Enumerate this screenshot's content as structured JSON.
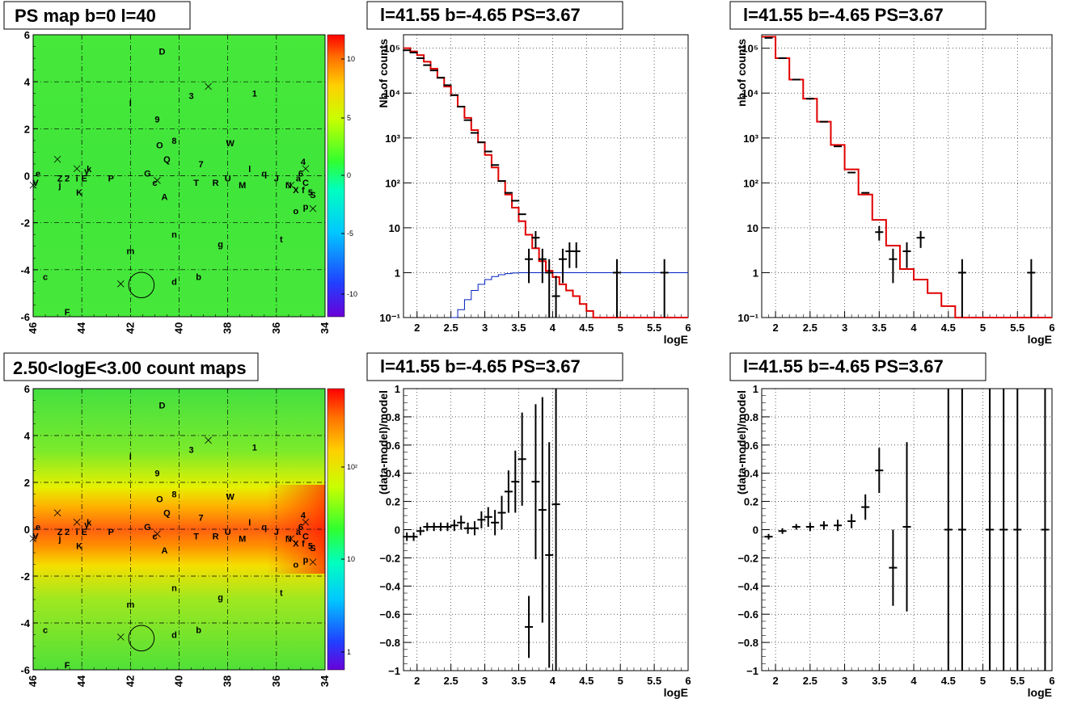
{
  "panels": {
    "map_top": {
      "title": "PS map b=0 l=40",
      "type": "heatmap",
      "x_ticks": [
        "46",
        "44",
        "42",
        "40",
        "38",
        "36",
        "34"
      ],
      "y_ticks": [
        "6",
        "4",
        "2",
        "0",
        "-2",
        "-4",
        "-6"
      ],
      "xlim": [
        46,
        34
      ],
      "ylim": [
        -6,
        6
      ],
      "colorbar_ticks": [
        "10",
        "5",
        "0",
        "-5",
        "-10"
      ],
      "colorbar_range": [
        -12,
        12
      ]
    },
    "map_bottom": {
      "title": "2.50<logE<3.00 count maps",
      "type": "heatmap",
      "x_ticks": [
        "46",
        "44",
        "42",
        "40",
        "38",
        "36",
        "34"
      ],
      "y_ticks": [
        "6",
        "4",
        "2",
        "0",
        "-2",
        "-4",
        "-6"
      ],
      "xlim": [
        46,
        34
      ],
      "ylim": [
        -6,
        6
      ],
      "colorbar_ticks": [
        "10²",
        "10",
        "1"
      ]
    },
    "sources": [
      {
        "t": "D",
        "l": 40.7,
        "b": 5.3
      },
      {
        "t": "3",
        "l": 39.5,
        "b": 3.4
      },
      {
        "t": "1",
        "l": 36.9,
        "b": 3.5
      },
      {
        "t": "I",
        "l": 42.0,
        "b": 3.1
      },
      {
        "t": "9",
        "l": 40.9,
        "b": 2.4
      },
      {
        "t": "8",
        "l": 40.2,
        "b": 1.5
      },
      {
        "t": "O",
        "l": 40.8,
        "b": 1.3
      },
      {
        "t": "W",
        "l": 37.9,
        "b": 1.4
      },
      {
        "t": "Q",
        "l": 40.5,
        "b": 0.7
      },
      {
        "t": "7",
        "l": 39.1,
        "b": 0.5
      },
      {
        "t": "4",
        "l": 34.9,
        "b": 0.6
      },
      {
        "t": "l",
        "l": 37.1,
        "b": 0.3
      },
      {
        "t": "q",
        "l": 36.5,
        "b": 0.1
      },
      {
        "t": "G",
        "l": 41.3,
        "b": 0.1
      },
      {
        "t": "e",
        "l": 45.8,
        "b": 0.1
      },
      {
        "t": "Z",
        "l": 44.9,
        "b": -0.1
      },
      {
        "t": "2",
        "l": 44.6,
        "b": -0.1
      },
      {
        "t": "i",
        "l": 44.2,
        "b": -0.1
      },
      {
        "t": "E",
        "l": 43.9,
        "b": -0.1
      },
      {
        "t": "P",
        "l": 42.8,
        "b": -0.1
      },
      {
        "t": "U",
        "l": 38.0,
        "b": -0.1
      },
      {
        "t": "J",
        "l": 36.0,
        "b": -0.1
      },
      {
        "t": "T",
        "l": 39.3,
        "b": -0.3
      },
      {
        "t": "R",
        "l": 38.5,
        "b": -0.3
      },
      {
        "t": "M",
        "l": 37.4,
        "b": -0.4
      },
      {
        "t": "V",
        "l": 45.9,
        "b": -0.3
      },
      {
        "t": "j",
        "l": 44.9,
        "b": -0.4
      },
      {
        "t": "N",
        "l": 35.5,
        "b": -0.4
      },
      {
        "t": "X",
        "l": 35.2,
        "b": -0.6
      },
      {
        "t": "K",
        "l": 44.1,
        "b": -0.7
      },
      {
        "t": "k",
        "l": 43.7,
        "b": 0.3
      },
      {
        "t": "y",
        "l": 43.8,
        "b": 0.2
      },
      {
        "t": "c",
        "l": 41.0,
        "b": -0.3
      },
      {
        "t": "6",
        "l": 35.0,
        "b": 0.1
      },
      {
        "t": "a",
        "l": 35.1,
        "b": -0.1
      },
      {
        "t": "C",
        "l": 34.8,
        "b": -0.3
      },
      {
        "t": "5",
        "l": 34.6,
        "b": -0.7
      },
      {
        "t": "S",
        "l": 34.5,
        "b": -0.8
      },
      {
        "t": "f",
        "l": 34.9,
        "b": -0.6
      },
      {
        "t": "A",
        "l": 40.6,
        "b": -0.9
      },
      {
        "t": "o",
        "l": 35.2,
        "b": -1.5
      },
      {
        "t": "p",
        "l": 34.8,
        "b": -1.3
      },
      {
        "t": "n",
        "l": 40.2,
        "b": -2.5
      },
      {
        "t": "g",
        "l": 38.3,
        "b": -2.9
      },
      {
        "t": "t",
        "l": 35.8,
        "b": -2.7
      },
      {
        "t": "m",
        "l": 42.0,
        "b": -3.2
      },
      {
        "t": "c",
        "l": 45.5,
        "b": -4.3
      },
      {
        "t": "b",
        "l": 39.2,
        "b": -4.3
      },
      {
        "t": "d",
        "l": 40.2,
        "b": -4.5
      },
      {
        "t": "F",
        "l": 44.6,
        "b": -5.8
      }
    ],
    "crosses": [
      {
        "l": 45.0,
        "b": 0.7
      },
      {
        "l": 44.2,
        "b": 0.3
      },
      {
        "l": 42.4,
        "b": -4.6
      },
      {
        "l": 40.9,
        "b": -0.2
      },
      {
        "l": 46.0,
        "b": -0.4
      },
      {
        "l": 38.8,
        "b": 3.8
      },
      {
        "l": 34.8,
        "b": 0.3
      },
      {
        "l": 34.5,
        "b": -1.4
      },
      {
        "l": 35.4,
        "b": -0.4
      }
    ],
    "circle": {
      "l": 41.55,
      "b": -4.65,
      "r_deg": 0.5
    },
    "spec_left": {
      "title": "l=41.55 b=-4.65 PS=3.67",
      "ylabel": "Nb of counts",
      "xlabel": "logE",
      "x_ticks": [
        "2",
        "2.5",
        "3",
        "3.5",
        "4",
        "4.5",
        "5",
        "5.5",
        "6"
      ],
      "y_ticks": [
        "10⁵",
        "10⁴",
        "10³",
        "10²",
        "10",
        "1",
        "10⁻¹"
      ],
      "xlim": [
        1.8,
        6
      ],
      "ylim_log": [
        -1,
        5.3
      ]
    },
    "spec_right": {
      "title": "l=41.55 b=-4.65 PS=3.67",
      "ylabel": "nb of counts",
      "xlabel": "logE",
      "x_ticks": [
        "2",
        "2.5",
        "3",
        "3.5",
        "4",
        "4.5",
        "5",
        "5.5",
        "6"
      ],
      "y_ticks": [
        "10⁵",
        "10⁴",
        "10³",
        "10²",
        "10",
        "1",
        "10⁻¹"
      ],
      "xlim": [
        1.8,
        6
      ],
      "ylim_log": [
        -1,
        5.3
      ]
    },
    "res_left": {
      "title": "l=41.55 b=-4.65 PS=3.67",
      "ylabel": "(data-model)/model",
      "xlabel": "logE",
      "x_ticks": [
        "2",
        "2.5",
        "3",
        "3.5",
        "4",
        "4.5",
        "5",
        "5.5",
        "6"
      ],
      "y_ticks": [
        "1",
        "0.8",
        "0.6",
        "0.4",
        "0.2",
        "0",
        "−0.2",
        "−0.4",
        "−0.6",
        "−0.8",
        "−1"
      ],
      "xlim": [
        1.8,
        6
      ],
      "ylim": [
        -1,
        1
      ]
    },
    "res_right": {
      "title": "l=41.55 b=-4.65 PS=3.67",
      "ylabel": "(data-model)/model",
      "xlabel": "logE",
      "x_ticks": [
        "2",
        "2.5",
        "3",
        "3.5",
        "4",
        "4.5",
        "5",
        "5.5",
        "6"
      ],
      "y_ticks": [
        "1",
        "0.8",
        "0.6",
        "0.4",
        "0.2",
        "0",
        "−0.2",
        "−0.4",
        "−0.6",
        "−0.8",
        "−1"
      ],
      "xlim": [
        1.8,
        6
      ],
      "ylim": [
        -1,
        1
      ]
    }
  },
  "chart_data": [
    {
      "type": "heatmap",
      "title": "PS map b=0 l=40",
      "xlim": [
        46,
        34
      ],
      "ylim": [
        -6,
        6
      ],
      "colorbar_range": [
        -12,
        12
      ]
    },
    {
      "type": "line",
      "title": "l=41.55 b=-4.65 PS=3.67",
      "xlabel": "logE",
      "ylabel": "Nb of counts",
      "yscale": "log",
      "series": [
        {
          "values_data": [
            [
              1.85,
              90000
            ],
            [
              1.95,
              80000
            ],
            [
              2.05,
              60000
            ],
            [
              2.15,
              42000
            ],
            [
              2.25,
              32000
            ],
            [
              2.35,
              22000
            ],
            [
              2.45,
              15000
            ],
            [
              2.55,
              9000
            ],
            [
              2.65,
              5000
            ],
            [
              2.75,
              2500
            ],
            [
              2.85,
              1300
            ],
            [
              2.95,
              800
            ],
            [
              3.05,
              500
            ],
            [
              3.15,
              250
            ],
            [
              3.25,
              110
            ],
            [
              3.35,
              60
            ],
            [
              3.45,
              40
            ],
            [
              3.55,
              20
            ],
            [
              3.65,
              2
            ],
            [
              3.75,
              6
            ],
            [
              3.85,
              2
            ],
            [
              3.95,
              1
            ],
            [
              4.05,
              0.3
            ],
            [
              4.15,
              2
            ],
            [
              4.25,
              3
            ],
            [
              4.35,
              3
            ],
            [
              4.95,
              1
            ],
            [
              5.65,
              1
            ]
          ]
        },
        {
          "values_model": [
            [
              1.8,
              100000
            ],
            [
              1.9,
              85000
            ],
            [
              2.0,
              70000
            ],
            [
              2.1,
              50000
            ],
            [
              2.2,
              35000
            ],
            [
              2.3,
              22000
            ],
            [
              2.4,
              14000
            ],
            [
              2.5,
              9000
            ],
            [
              2.6,
              5000
            ],
            [
              2.7,
              2800
            ],
            [
              2.8,
              1500
            ],
            [
              2.9,
              800
            ],
            [
              3.0,
              420
            ],
            [
              3.1,
              220
            ],
            [
              3.2,
              110
            ],
            [
              3.3,
              55
            ],
            [
              3.4,
              28
            ],
            [
              3.5,
              14
            ],
            [
              3.6,
              7
            ],
            [
              3.7,
              3.5
            ],
            [
              3.8,
              1.8
            ],
            [
              3.9,
              1.1
            ],
            [
              4.0,
              0.8
            ],
            [
              4.1,
              0.55
            ],
            [
              4.2,
              0.4
            ],
            [
              4.3,
              0.3
            ],
            [
              4.4,
              0.2
            ],
            [
              4.5,
              0.14
            ],
            [
              4.6,
              0.1
            ],
            [
              6.0,
              0.1
            ]
          ]
        },
        {
          "values_bkg": [
            [
              2.5,
              0.1
            ],
            [
              2.6,
              0.15
            ],
            [
              2.7,
              0.25
            ],
            [
              2.8,
              0.4
            ],
            [
              2.9,
              0.55
            ],
            [
              3.0,
              0.7
            ],
            [
              3.1,
              0.82
            ],
            [
              3.2,
              0.9
            ],
            [
              3.3,
              0.95
            ],
            [
              3.4,
              0.98
            ],
            [
              3.5,
              1.0
            ],
            [
              6.0,
              1.0
            ]
          ]
        }
      ]
    },
    {
      "type": "line",
      "title": "l=41.55 b=-4.65 PS=3.67",
      "xlabel": "logE",
      "ylabel": "nb of counts",
      "yscale": "log",
      "series": [
        {
          "values_data": [
            [
              1.9,
              170000
            ],
            [
              2.1,
              60000
            ],
            [
              2.3,
              20000
            ],
            [
              2.5,
              7500
            ],
            [
              2.7,
              2300
            ],
            [
              2.9,
              650
            ],
            [
              3.1,
              170
            ],
            [
              3.3,
              60
            ],
            [
              3.5,
              8
            ],
            [
              3.7,
              2
            ],
            [
              3.9,
              3
            ],
            [
              4.1,
              6
            ],
            [
              4.7,
              1
            ],
            [
              5.7,
              1
            ]
          ]
        },
        {
          "values_model": [
            [
              1.8,
              180000
            ],
            [
              2.0,
              60000
            ],
            [
              2.2,
              20000
            ],
            [
              2.4,
              7500
            ],
            [
              2.6,
              2300
            ],
            [
              2.8,
              700
            ],
            [
              3.0,
              200
            ],
            [
              3.2,
              55
            ],
            [
              3.4,
              15
            ],
            [
              3.6,
              4
            ],
            [
              3.8,
              1.2
            ],
            [
              4.0,
              0.7
            ],
            [
              4.2,
              0.35
            ],
            [
              4.4,
              0.18
            ],
            [
              4.6,
              0.1
            ],
            [
              6.0,
              0.1
            ]
          ]
        }
      ]
    },
    {
      "type": "scatter",
      "title": "l=41.55 b=-4.65 PS=3.67",
      "xlabel": "logE",
      "ylabel": "(data-model)/model",
      "ylim": [
        -1,
        1
      ],
      "points": [
        [
          1.85,
          -0.05,
          0.03
        ],
        [
          1.95,
          -0.05,
          0.03
        ],
        [
          2.05,
          -0.01,
          0.03
        ],
        [
          2.15,
          0.02,
          0.03
        ],
        [
          2.25,
          0.02,
          0.03
        ],
        [
          2.35,
          0.02,
          0.03
        ],
        [
          2.45,
          0.02,
          0.03
        ],
        [
          2.55,
          0.03,
          0.04
        ],
        [
          2.65,
          0.05,
          0.05
        ],
        [
          2.75,
          0.01,
          0.04
        ],
        [
          2.85,
          0.01,
          0.05
        ],
        [
          2.95,
          0.07,
          0.06
        ],
        [
          3.05,
          0.09,
          0.07
        ],
        [
          3.15,
          0.05,
          0.09
        ],
        [
          3.25,
          0.12,
          0.12
        ],
        [
          3.35,
          0.27,
          0.15
        ],
        [
          3.45,
          0.34,
          0.22
        ],
        [
          3.55,
          0.5,
          0.33
        ],
        [
          3.65,
          -0.69,
          0.22
        ],
        [
          3.75,
          0.34,
          0.55
        ],
        [
          3.85,
          0.14,
          0.8
        ],
        [
          3.95,
          -0.18,
          0.8
        ],
        [
          4.05,
          0.18,
          1.5
        ]
      ]
    },
    {
      "type": "scatter",
      "title": "l=41.55 b=-4.65 PS=3.67",
      "xlabel": "logE",
      "ylabel": "(data-model)/model",
      "ylim": [
        -1,
        1
      ],
      "points": [
        [
          1.9,
          -0.05,
          0.02
        ],
        [
          2.1,
          -0.01,
          0.02
        ],
        [
          2.3,
          0.02,
          0.02
        ],
        [
          2.5,
          0.02,
          0.03
        ],
        [
          2.7,
          0.03,
          0.03
        ],
        [
          2.9,
          0.03,
          0.04
        ],
        [
          3.1,
          0.06,
          0.05
        ],
        [
          3.3,
          0.16,
          0.09
        ],
        [
          3.5,
          0.42,
          0.16
        ],
        [
          3.7,
          -0.27,
          0.27
        ],
        [
          3.9,
          0.02,
          0.6
        ],
        [
          4.5,
          0,
          2
        ],
        [
          4.7,
          0,
          2
        ],
        [
          5.1,
          0,
          2
        ],
        [
          5.3,
          0,
          2
        ],
        [
          5.5,
          0,
          2
        ],
        [
          5.9,
          0,
          2
        ]
      ]
    },
    {
      "type": "heatmap",
      "title": "2.50<logE<3.00 count maps",
      "xlim": [
        46,
        34
      ],
      "ylim": [
        -6,
        6
      ]
    }
  ]
}
